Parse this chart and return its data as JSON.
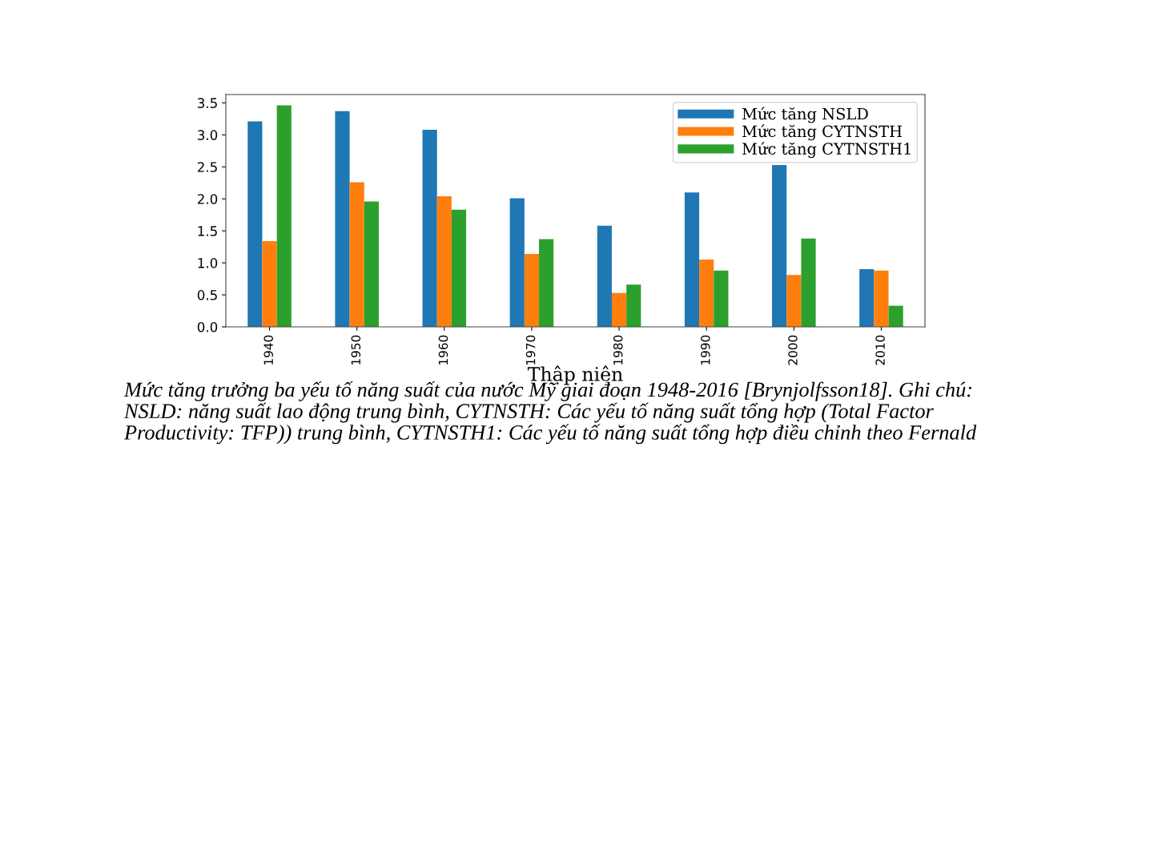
{
  "chart_data": {
    "type": "bar",
    "xlabel": "Thập niên",
    "categories": [
      "1940",
      "1950",
      "1960",
      "1970",
      "1980",
      "1990",
      "2000",
      "2010"
    ],
    "series": [
      {
        "name": "Mức tăng NSLD",
        "color": "#1f77b4",
        "values": [
          3.21,
          3.37,
          3.08,
          2.01,
          1.58,
          2.1,
          2.53,
          0.9
        ]
      },
      {
        "name": "Mức tăng CYTNSTH",
        "color": "#ff7f0e",
        "values": [
          1.34,
          2.26,
          2.04,
          1.14,
          0.53,
          1.05,
          0.81,
          0.88
        ]
      },
      {
        "name": "Mức tăng CYTNSTH1",
        "color": "#2ca02c",
        "values": [
          3.46,
          1.96,
          1.83,
          1.37,
          0.66,
          0.88,
          1.38,
          0.33
        ]
      }
    ],
    "ylim": [
      0,
      3.63
    ],
    "yticks": [
      {
        "value": 0,
        "label": "0.0"
      },
      {
        "value": 0.5,
        "label": "0.5"
      },
      {
        "value": 1,
        "label": "1.0"
      },
      {
        "value": 1.5,
        "label": "1.5"
      },
      {
        "value": 2,
        "label": "2.0"
      },
      {
        "value": 2.5,
        "label": "2.5"
      },
      {
        "value": 3,
        "label": "3.0"
      },
      {
        "value": 3.5,
        "label": "3.5"
      }
    ],
    "legend": "top right",
    "annotations": [
      "Mức tăng trưởng ba yếu tố năng suất của nước Mỹ giai đoạn 1948-2016 [Brynjolfsson18]. Ghi chú:\nNSLD: năng suất lao động trung bình, CYTNSTH: Các yếu tố năng suất tổng hợp (Total Factor\nProductivity: TFP)) trung bình, CYTNSTH1: Các yếu tố năng suất tổng hợp điều chỉnh theo Fernald"
    ]
  }
}
